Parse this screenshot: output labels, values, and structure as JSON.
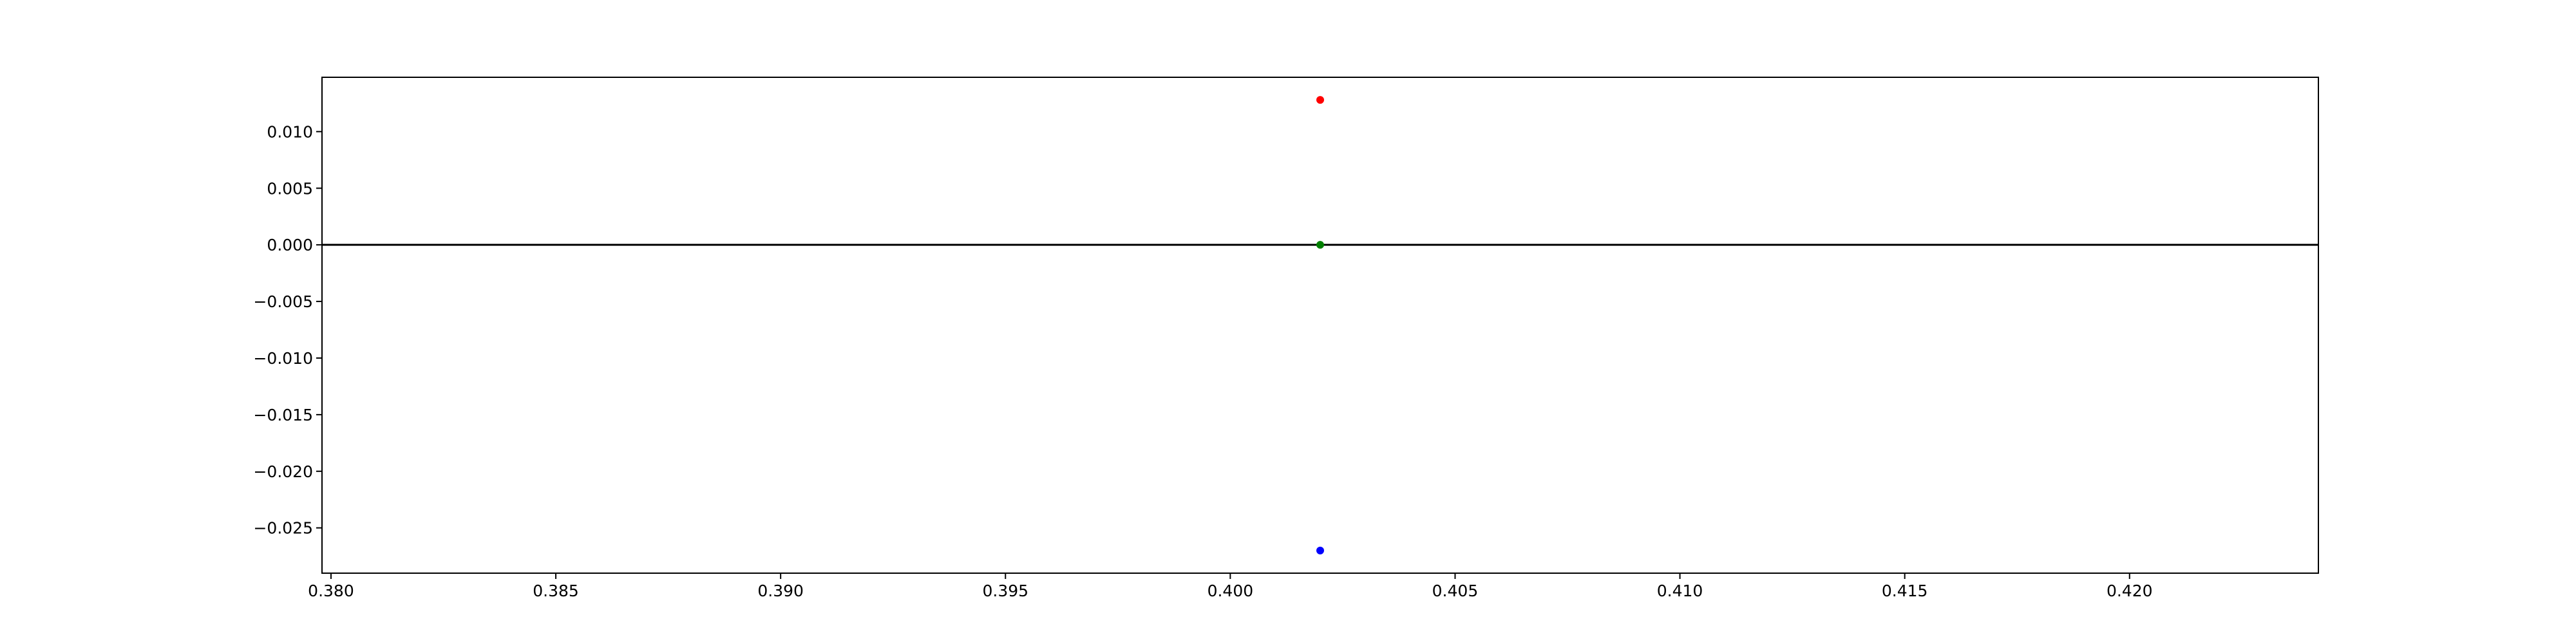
{
  "chart_data": {
    "type": "scatter",
    "title": "",
    "xlabel": "",
    "ylabel": "",
    "xlim": [
      0.3798,
      0.4242
    ],
    "ylim": [
      -0.029,
      0.0148
    ],
    "grid": false,
    "x_ticks": [
      0.38,
      0.385,
      0.39,
      0.395,
      0.4,
      0.405,
      0.41,
      0.415,
      0.42
    ],
    "x_tick_labels": [
      "0.380",
      "0.385",
      "0.390",
      "0.395",
      "0.400",
      "0.405",
      "0.410",
      "0.415",
      "0.420"
    ],
    "y_ticks": [
      0.01,
      0.005,
      0.0,
      -0.005,
      -0.01,
      -0.015,
      -0.02,
      -0.025
    ],
    "y_tick_labels": [
      "0.010",
      "0.005",
      "0.000",
      "−0.005",
      "−0.010",
      "−0.015",
      "−0.020",
      "−0.025"
    ],
    "reference_line": {
      "y": 0.0,
      "color": "#000000"
    },
    "points": [
      {
        "x": 0.402,
        "y": 0.0128,
        "color": "#ff0000"
      },
      {
        "x": 0.402,
        "y": 0.0,
        "color": "#008000"
      },
      {
        "x": 0.402,
        "y": -0.027,
        "color": "#0000ff"
      }
    ]
  }
}
